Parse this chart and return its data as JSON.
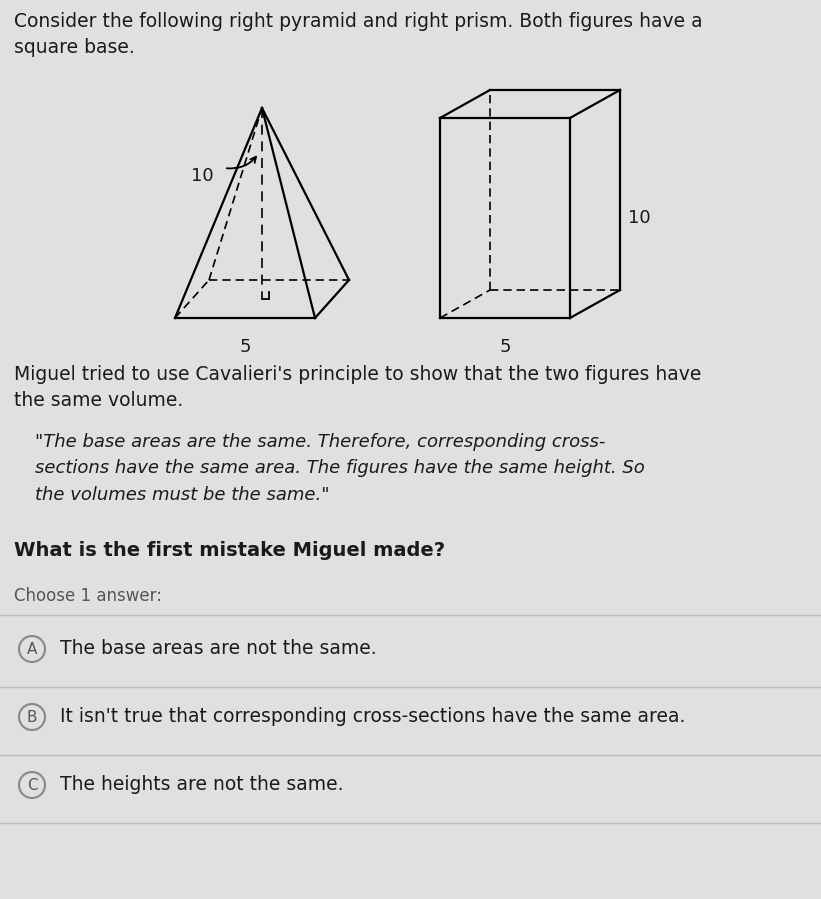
{
  "bg_color": "#e0e0e0",
  "title_text1": "Consider the following right pyramid and right prism. Both figures have a",
  "title_text2": "square base.",
  "title_fontsize": 13.5,
  "title_color": "#1a1a1a",
  "pyramid_label_10": "10",
  "pyramid_label_5": "5",
  "prism_label_10": "10",
  "prism_label_5": "5",
  "miguel_intro1": "Miguel tried to use Cavalieri's principle to show that the two figures have",
  "miguel_intro2": "the same volume.",
  "miguel_quote": "\"The base areas are the same. Therefore, corresponding cross-\nsections have the same area. The figures have the same height. So\nthe volumes must be the same.\"",
  "question_text": "What is the first mistake Miguel made?",
  "choose_text": "Choose 1 answer:",
  "option_A": "The base areas are not the same.",
  "option_B": "It isn't true that corresponding cross-sections have the same area.",
  "option_C": "The heights are not the same.",
  "divider_color": "#bbbbbb",
  "circle_color": "#888888",
  "text_color": "#1a1a1a",
  "choose_color": "#555555"
}
